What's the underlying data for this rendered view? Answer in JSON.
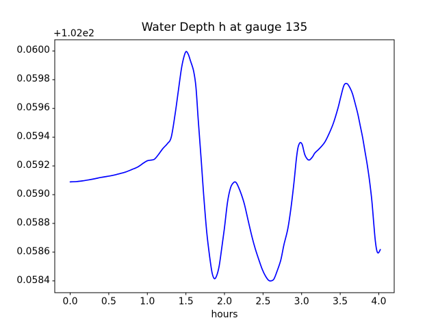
{
  "chart_data": {
    "type": "line",
    "title": "Water Depth h at gauge 135",
    "xlabel": "hours",
    "ylabel": "",
    "y_axis_offset": "+1.02e2",
    "line_color": "#0000ff",
    "background_color": "#ffffff",
    "grid": false,
    "legend_position": "none",
    "xlim": [
      -0.2,
      4.2
    ],
    "ylim": [
      0.058318,
      0.060078
    ],
    "x_ticks": {
      "values": [
        0.0,
        0.5,
        1.0,
        1.5,
        2.0,
        2.5,
        3.0,
        3.5,
        4.0
      ],
      "labels": [
        "0.0",
        "0.5",
        "1.0",
        "1.5",
        "2.0",
        "2.5",
        "3.0",
        "3.5",
        "4.0"
      ]
    },
    "y_ticks": {
      "values": [
        0.0584,
        0.0586,
        0.0588,
        0.059,
        0.0592,
        0.0594,
        0.0596,
        0.0598,
        0.06
      ],
      "labels": [
        "0.0584",
        "0.0586",
        "0.0588",
        "0.0590",
        "0.0592",
        "0.0594",
        "0.0596",
        "0.0598",
        "0.0600"
      ]
    },
    "series": [
      {
        "name": "water depth h",
        "x": [
          0.0,
          0.08,
          0.16,
          0.24,
          0.32,
          0.4,
          0.48,
          0.56,
          0.64,
          0.72,
          0.8,
          0.88,
          0.95,
          1.0,
          1.04,
          1.09,
          1.14,
          1.2,
          1.26,
          1.31,
          1.36,
          1.4,
          1.44,
          1.47,
          1.5,
          1.53,
          1.56,
          1.6,
          1.63,
          1.66,
          1.7,
          1.73,
          1.77,
          1.81,
          1.84,
          1.87,
          1.9,
          1.93,
          1.96,
          2.0,
          2.04,
          2.08,
          2.12,
          2.15,
          2.18,
          2.22,
          2.26,
          2.31,
          2.36,
          2.4,
          2.45,
          2.49,
          2.53,
          2.57,
          2.6,
          2.64,
          2.68,
          2.73,
          2.77,
          2.82,
          2.86,
          2.9,
          2.93,
          2.95,
          2.97,
          2.99,
          3.01,
          3.04,
          3.07,
          3.1,
          3.14,
          3.17,
          3.22,
          3.26,
          3.3,
          3.35,
          3.41,
          3.47,
          3.51,
          3.55,
          3.59,
          3.63,
          3.66,
          3.7,
          3.73,
          3.76,
          3.79,
          3.82,
          3.85,
          3.88,
          3.91,
          3.935,
          3.955,
          3.975,
          3.995,
          4.02
        ],
        "y": [
          0.059089,
          0.059091,
          0.059096,
          0.059103,
          0.059111,
          0.05912,
          0.059127,
          0.059135,
          0.059146,
          0.059158,
          0.059175,
          0.059194,
          0.05922,
          0.059236,
          0.05924,
          0.059246,
          0.059276,
          0.05932,
          0.059355,
          0.0594,
          0.05956,
          0.059715,
          0.05987,
          0.05995,
          0.059995,
          0.059978,
          0.05993,
          0.05986,
          0.05975,
          0.05952,
          0.05923,
          0.059,
          0.05874,
          0.05856,
          0.058455,
          0.058415,
          0.058438,
          0.0585,
          0.05861,
          0.05877,
          0.05895,
          0.05905,
          0.059085,
          0.059085,
          0.059055,
          0.059,
          0.05893,
          0.058813,
          0.0587,
          0.058622,
          0.05854,
          0.05848,
          0.058435,
          0.058405,
          0.0584,
          0.058412,
          0.058465,
          0.058545,
          0.05865,
          0.05876,
          0.0589,
          0.05908,
          0.05924,
          0.05932,
          0.059355,
          0.059362,
          0.059345,
          0.05928,
          0.05925,
          0.059241,
          0.059262,
          0.059289,
          0.059315,
          0.059338,
          0.059365,
          0.059418,
          0.059495,
          0.0596,
          0.059686,
          0.059762,
          0.059772,
          0.05974,
          0.059701,
          0.059622,
          0.059558,
          0.059479,
          0.0594,
          0.059305,
          0.05921,
          0.059098,
          0.05896,
          0.0588,
          0.05868,
          0.05861,
          0.058595,
          0.058618
        ]
      }
    ]
  }
}
